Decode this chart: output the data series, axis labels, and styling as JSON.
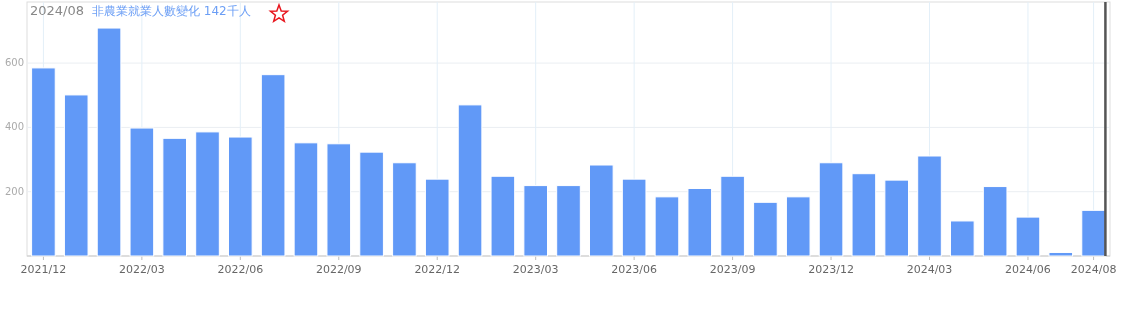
{
  "chart_data": {
    "type": "bar",
    "title": "2024/08",
    "subtitle": "非農業就業人數變化 142千人",
    "categories": [
      "2021/12",
      null,
      null,
      "2022/03",
      null,
      null,
      "2022/06",
      null,
      null,
      "2022/09",
      null,
      null,
      "2022/12",
      null,
      null,
      "2023/03",
      null,
      null,
      "2023/06",
      null,
      null,
      "2023/09",
      null,
      null,
      "2023/12",
      null,
      null,
      "2024/03",
      null,
      null,
      "2024/06",
      null,
      "2024/08"
    ],
    "values": [
      585,
      501,
      709,
      398,
      366,
      386,
      370,
      564,
      352,
      349,
      323,
      290,
      239,
      470,
      248,
      219,
      219,
      283,
      239,
      184,
      210,
      248,
      167,
      184,
      290,
      256,
      236,
      311,
      109,
      216,
      121,
      11,
      142
    ],
    "color": "#6199f7",
    "ylim": [
      0,
      790
    ],
    "yticks": [
      200,
      400,
      600
    ],
    "grid": true,
    "ref_lines": [
      {
        "axis": "x",
        "value": "2024/08",
        "color": "#555555"
      }
    ]
  }
}
